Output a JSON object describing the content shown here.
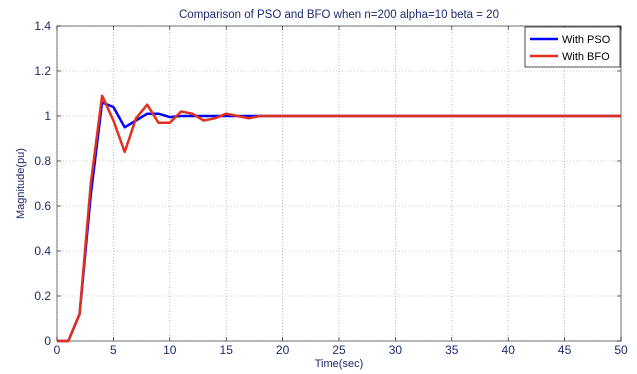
{
  "chart_data": {
    "type": "line",
    "title": "Comparison of PSO and BFO when n=200 alpha=10 beta = 20",
    "xlabel": "Time(sec)",
    "ylabel": "Magnitude(pu)",
    "xlim": [
      0,
      50
    ],
    "ylim": [
      0,
      1.4
    ],
    "xticks": [
      "0",
      "5",
      "10",
      "15",
      "20",
      "25",
      "30",
      "35",
      "40",
      "45",
      "50"
    ],
    "yticks": [
      "0",
      "0.2",
      "0.4",
      "0.6",
      "0.8",
      "1",
      "1.2",
      "1.4"
    ],
    "grid": true,
    "legend_position": "top-right",
    "series": [
      {
        "name": "With PSO",
        "color": "#0000ff",
        "x": [
          0,
          1,
          2,
          3,
          4,
          5,
          6,
          7,
          8,
          9,
          10,
          11,
          12,
          13,
          14,
          15,
          16,
          17,
          18,
          19,
          20,
          30,
          40,
          50
        ],
        "y": [
          0,
          0,
          0.12,
          0.65,
          1.06,
          1.04,
          0.95,
          0.98,
          1.01,
          1.01,
          0.995,
          1.0,
          1.0,
          1.0,
          1.0,
          1.0,
          1.0,
          1.0,
          1.0,
          1.0,
          1.0,
          1.0,
          1.0,
          1.0
        ]
      },
      {
        "name": "With BFO",
        "color": "#e0301e",
        "x": [
          0,
          1,
          2,
          3,
          4,
          5,
          6,
          7,
          8,
          9,
          10,
          11,
          12,
          13,
          14,
          15,
          16,
          17,
          18,
          19,
          20,
          30,
          40,
          50
        ],
        "y": [
          0,
          0,
          0.12,
          0.7,
          1.09,
          0.98,
          0.84,
          0.99,
          1.05,
          0.97,
          0.97,
          1.02,
          1.01,
          0.98,
          0.99,
          1.01,
          1.0,
          0.99,
          1.0,
          1.0,
          1.0,
          1.0,
          1.0,
          1.0
        ]
      }
    ]
  }
}
